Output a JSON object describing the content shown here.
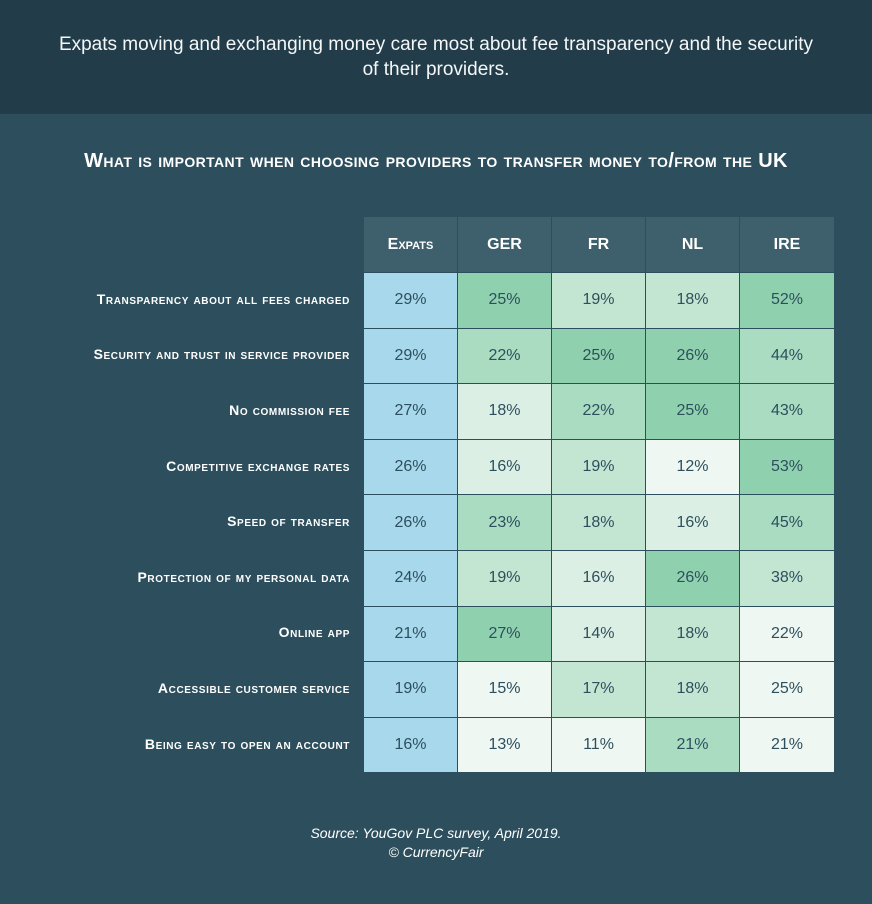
{
  "header": {
    "text": "Expats moving and exchanging money care most about fee transparency and the security of their providers."
  },
  "chart_data": {
    "type": "heatmap",
    "title": "What is important when choosing providers to transfer money to/from the UK",
    "columns": [
      "Expats",
      "GER",
      "FR",
      "NL",
      "IRE"
    ],
    "rows": [
      "Transparency about all fees charged",
      "Security and trust in service provider",
      "No commission fee",
      "Competitive exchange rates",
      "Speed of transfer",
      "Protection of my personal data",
      "Online app",
      "Accessible customer service",
      "Being easy to open an account"
    ],
    "values": [
      [
        29,
        25,
        19,
        18,
        52
      ],
      [
        29,
        22,
        25,
        26,
        44
      ],
      [
        27,
        18,
        22,
        25,
        43
      ],
      [
        26,
        16,
        19,
        12,
        53
      ],
      [
        26,
        23,
        18,
        16,
        45
      ],
      [
        24,
        19,
        16,
        26,
        38
      ],
      [
        21,
        27,
        14,
        18,
        22
      ],
      [
        19,
        15,
        17,
        18,
        25
      ],
      [
        16,
        13,
        11,
        21,
        21
      ]
    ],
    "value_suffix": "%",
    "colors": {
      "expats": "#a8d8ec",
      "scale": [
        "#eef7f2",
        "#dcefe4",
        "#c3e6d3",
        "#aadcc2",
        "#8fd1ae"
      ]
    }
  },
  "source": {
    "line1": "Source: YouGov PLC survey, April 2019.",
    "line2": "© CurrencyFair"
  }
}
